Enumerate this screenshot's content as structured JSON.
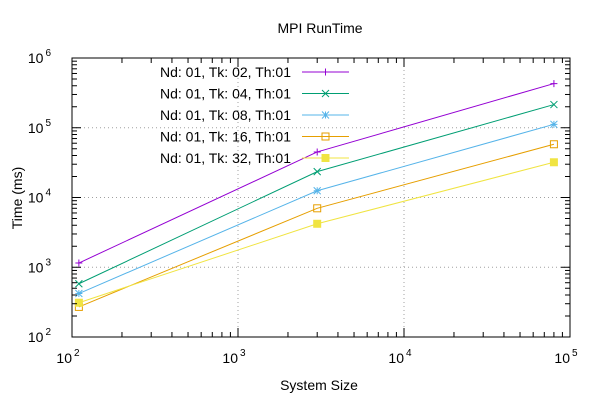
{
  "chart_data": {
    "type": "line",
    "title": "MPI RunTime",
    "xlabel": "System Size",
    "ylabel": "Time (ms)",
    "xscale": "log",
    "yscale": "log",
    "xlim": [
      100,
      100000
    ],
    "ylim": [
      100,
      1000000
    ],
    "grid": true,
    "legend_position": "top-left",
    "x_ticks": [
      {
        "base": "10",
        "exp": "2",
        "value": 100
      },
      {
        "base": "10",
        "exp": "3",
        "value": 1000
      },
      {
        "base": "10",
        "exp": "4",
        "value": 10000
      },
      {
        "base": "10",
        "exp": "5",
        "value": 100000
      }
    ],
    "y_ticks": [
      {
        "base": "10",
        "exp": "2",
        "value": 100
      },
      {
        "base": "10",
        "exp": "3",
        "value": 1000
      },
      {
        "base": "10",
        "exp": "4",
        "value": 10000
      },
      {
        "base": "10",
        "exp": "5",
        "value": 100000
      },
      {
        "base": "10",
        "exp": "6",
        "value": 1000000
      }
    ],
    "x": [
      110,
      3000,
      80000
    ],
    "series": [
      {
        "name": "Nd: 01, Tk: 02, Th:01",
        "color": "#9400d3",
        "marker": "plus",
        "values": [
          1150,
          45000,
          430000
        ]
      },
      {
        "name": "Nd: 01, Tk: 04, Th:01",
        "color": "#009e73",
        "marker": "x",
        "values": [
          580,
          23500,
          215000
        ]
      },
      {
        "name": "Nd: 01, Tk: 08, Th:01",
        "color": "#56b4e9",
        "marker": "star",
        "values": [
          420,
          12500,
          112000
        ]
      },
      {
        "name": "Nd: 01, Tk: 16, Th:01",
        "color": "#e69f00",
        "marker": "square-open",
        "values": [
          270,
          7000,
          58000
        ]
      },
      {
        "name": "Nd: 01, Tk: 32, Th:01",
        "color": "#f0e442",
        "marker": "square-filled",
        "values": [
          310,
          4200,
          32000
        ]
      }
    ]
  }
}
